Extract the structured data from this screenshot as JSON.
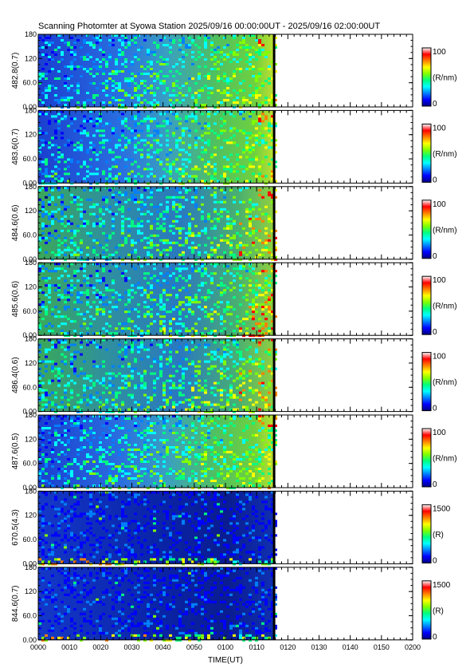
{
  "chart_data": {
    "type": "heatmap",
    "title": "Scanning Photomter at Syowa Station 2025/09/16 00:00:00UT - 2025/09/16 02:00:00UT",
    "xlabel": "TIME(UT)",
    "x_tick_labels": [
      "0000",
      "0010",
      "0020",
      "0030",
      "0040",
      "0050",
      "0100",
      "0110",
      "0120",
      "0130",
      "0140",
      "0150",
      "0200"
    ],
    "y_tick_labels": [
      "0.00",
      "60.0",
      "120",
      "180"
    ],
    "ylim": [
      0,
      180
    ],
    "data_end_fraction": 0.63,
    "panels": [
      {
        "ylabel": "482.8(0.7)",
        "colorbar_label": "(R/nm)",
        "colorbar_range": [
          "0",
          "100"
        ],
        "kind": "hbeta"
      },
      {
        "ylabel": "483.6(0.7)",
        "colorbar_label": "(R/nm)",
        "colorbar_range": [
          "0",
          "100"
        ],
        "kind": "hbeta"
      },
      {
        "ylabel": "484.6(0.6)",
        "colorbar_label": "(R/nm)",
        "colorbar_range": [
          "0",
          "100"
        ],
        "kind": "hbeta_strong"
      },
      {
        "ylabel": "485.6(0.6)",
        "colorbar_label": "(R/nm)",
        "colorbar_range": [
          "0",
          "100"
        ],
        "kind": "hbeta_strong"
      },
      {
        "ylabel": "486.4(0.6)",
        "colorbar_label": "(R/nm)",
        "colorbar_range": [
          "0",
          "100"
        ],
        "kind": "hbeta_peak"
      },
      {
        "ylabel": "487.6(0.5)",
        "colorbar_label": "(R/nm)",
        "colorbar_range": [
          "0",
          "100"
        ],
        "kind": "hbeta"
      },
      {
        "ylabel": "670.5(4.3)",
        "colorbar_label": "(R)",
        "colorbar_range": [
          "0",
          "1500"
        ],
        "kind": "aurora"
      },
      {
        "ylabel": "844.6(0.7)",
        "colorbar_label": "(R)",
        "colorbar_range": [
          "0",
          "1500"
        ],
        "kind": "aurora"
      }
    ],
    "colormap": [
      "#000080",
      "#0000ff",
      "#0080ff",
      "#00ffff",
      "#00ff80",
      "#80ff00",
      "#ffff00",
      "#ff8000",
      "#ff0000",
      "#ffffff"
    ]
  }
}
